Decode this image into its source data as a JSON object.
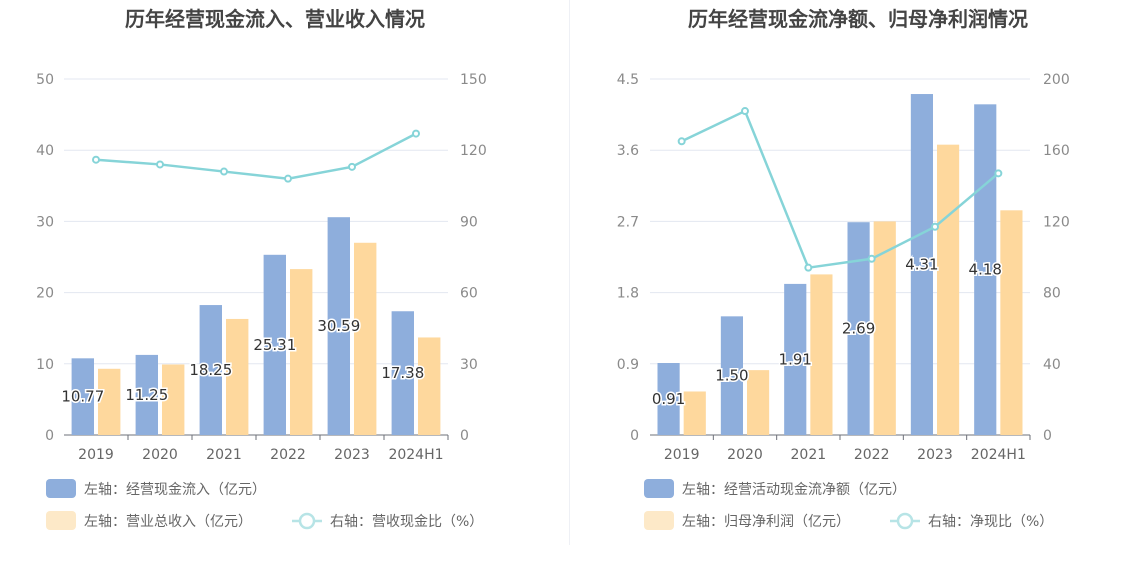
{
  "chart_data": [
    {
      "type": "bar",
      "title": "历年经营现金流入、营业收入情况",
      "categories": [
        "2019",
        "2020",
        "2021",
        "2022",
        "2023",
        "2024H1"
      ],
      "y_left": {
        "ticks": [
          "0",
          "10",
          "20",
          "30",
          "40",
          "50"
        ],
        "min": 0,
        "max": 50
      },
      "y_right": {
        "ticks": [
          "0",
          "30",
          "60",
          "90",
          "120",
          "150"
        ],
        "min": 0,
        "max": 150
      },
      "series": [
        {
          "name": "左轴：经营现金流入（亿元）",
          "kind": "bar",
          "axis": "left",
          "color": "#8eaedc",
          "values": [
            10.77,
            11.25,
            18.25,
            25.31,
            30.59,
            17.38
          ],
          "labels": [
            "10.77",
            "11.25",
            "18.25",
            "25.31",
            "30.59",
            "17.38"
          ]
        },
        {
          "name": "左轴：营业总收入（亿元）",
          "kind": "bar",
          "axis": "left",
          "color": "#fed89d",
          "values": [
            9.3,
            9.9,
            16.3,
            23.3,
            27.0,
            13.7
          ]
        },
        {
          "name": "右轴：营收现金比（%）",
          "kind": "line",
          "axis": "right",
          "color": "#86d4d8",
          "values": [
            116,
            114,
            111,
            108,
            113,
            127
          ]
        }
      ],
      "grid": true,
      "legend_position": "bottom-left"
    },
    {
      "type": "bar",
      "title": "历年经营现金流净额、归母净利润情况",
      "categories": [
        "2019",
        "2020",
        "2021",
        "2022",
        "2023",
        "2024H1"
      ],
      "y_left": {
        "ticks": [
          "0",
          "0.9",
          "1.8",
          "2.7",
          "3.6",
          "4.5"
        ],
        "min": 0,
        "max": 4.5
      },
      "y_right": {
        "ticks": [
          "0",
          "40",
          "80",
          "120",
          "160",
          "200"
        ],
        "min": 0,
        "max": 200
      },
      "series": [
        {
          "name": "左轴：经营活动现金流净额（亿元）",
          "kind": "bar",
          "axis": "left",
          "color": "#8eaedc",
          "values": [
            0.91,
            1.5,
            1.91,
            2.69,
            4.31,
            4.18
          ],
          "labels": [
            "0.91",
            "1.50",
            "1.91",
            "2.69",
            "4.31",
            "4.18"
          ]
        },
        {
          "name": "左轴：归母净利润（亿元）",
          "kind": "bar",
          "axis": "left",
          "color": "#fed89d",
          "values": [
            0.55,
            0.82,
            2.03,
            2.7,
            3.67,
            2.84
          ]
        },
        {
          "name": "右轴：净现比（%）",
          "kind": "line",
          "axis": "right",
          "color": "#86d4d8",
          "values": [
            165,
            182,
            94,
            99,
            117,
            147
          ]
        }
      ],
      "grid": true,
      "legend_position": "bottom-left"
    }
  ]
}
